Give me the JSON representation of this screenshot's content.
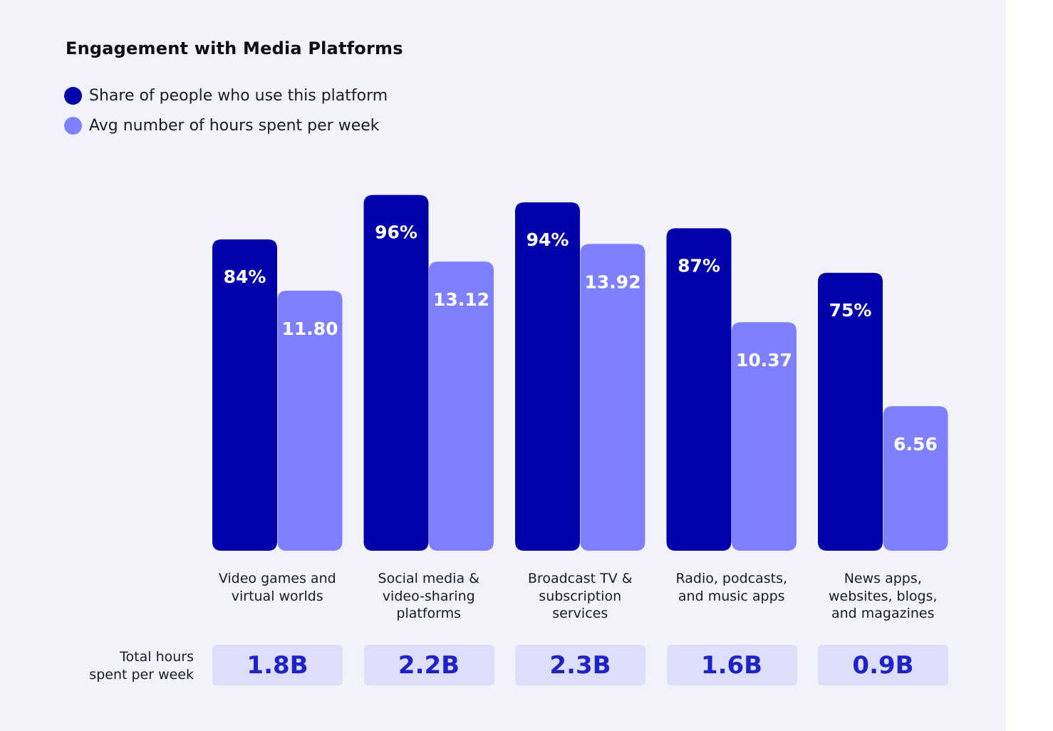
{
  "chart_data": {
    "type": "bar",
    "title": "Engagement with Media Platforms",
    "categories": [
      [
        "Video games and",
        "virtual worlds"
      ],
      [
        "Social media &",
        "video-sharing",
        "platforms"
      ],
      [
        "Broadcast TV &",
        "subscription",
        "services"
      ],
      [
        "Radio, podcasts,",
        "and music apps"
      ],
      [
        "News apps,",
        "websites, blogs,",
        "and magazines"
      ]
    ],
    "series": [
      {
        "name": "Share of people who use this platform",
        "color": "#0202aa",
        "values": [
          84,
          96,
          94,
          87,
          75
        ],
        "labels": [
          "84%",
          "96%",
          "94%",
          "87%",
          "75%"
        ]
      },
      {
        "name": "Avg number of hours spent per week",
        "color": "#7f80ff",
        "values": [
          11.8,
          13.12,
          13.92,
          10.37,
          6.56
        ],
        "labels": [
          "11.80",
          "13.12",
          "13.92",
          "10.37",
          "6.56"
        ]
      }
    ],
    "total_label": [
      "Total hours",
      "spent per week"
    ],
    "totals": [
      "1.8B",
      "2.2B",
      "2.3B",
      "1.6B",
      "0.9B"
    ],
    "legend_position": "top-left"
  }
}
